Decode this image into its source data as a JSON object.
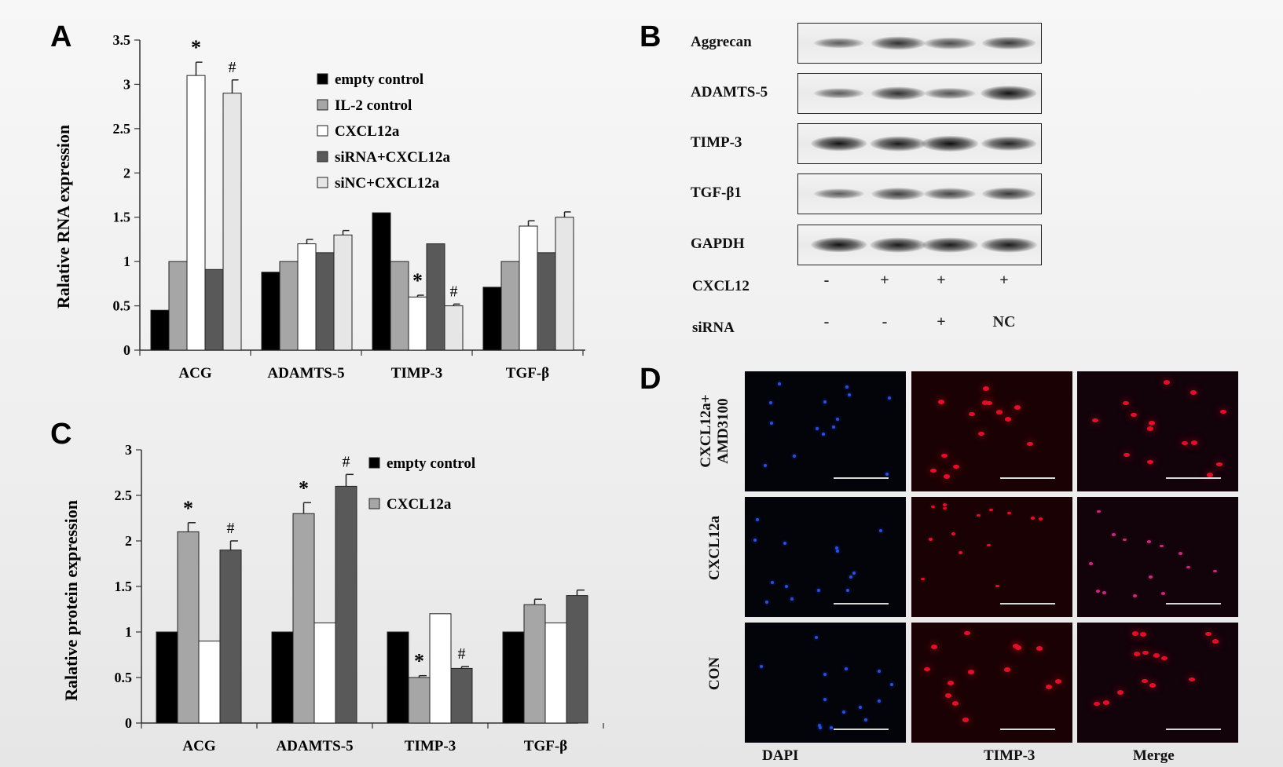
{
  "panels": {
    "A": "A",
    "B": "B",
    "C": "C",
    "D": "D"
  },
  "chart_data": [
    {
      "type": "bar",
      "panel": "A",
      "ylabel": "Ralative RNA expression",
      "categories": [
        "ACG",
        "ADAMTS-5",
        "TIMP-3",
        "TGF-β"
      ],
      "ylim": [
        0,
        3.5
      ],
      "yticks": [
        "0",
        "0.5",
        "1",
        "1.5",
        "2",
        "2.5",
        "3",
        "3.5"
      ],
      "legend_position": "top-right",
      "series": [
        {
          "name": "empty control",
          "color": "#000000",
          "values": [
            0.45,
            0.88,
            1.55,
            0.71
          ],
          "errors": [
            0,
            0,
            0,
            0
          ]
        },
        {
          "name": "IL-2 control",
          "color": "#a6a6a6",
          "values": [
            1.0,
            1.0,
            1.0,
            1.0
          ],
          "errors": [
            0,
            0,
            0,
            0
          ]
        },
        {
          "name": "CXCL12a",
          "color": "#ffffff",
          "values": [
            3.1,
            1.2,
            0.6,
            1.4
          ],
          "errors": [
            0.15,
            0.05,
            0.02,
            0.06
          ]
        },
        {
          "name": "siRNA+CXCL12a",
          "color": "#595959",
          "values": [
            0.91,
            1.1,
            1.2,
            1.1
          ],
          "errors": [
            0,
            0,
            0,
            0
          ]
        },
        {
          "name": "siNC+CXCL12a",
          "color": "#e6e6e6",
          "values": [
            2.9,
            1.3,
            0.5,
            1.5
          ],
          "errors": [
            0.15,
            0.05,
            0.02,
            0.06
          ]
        }
      ],
      "annotations": [
        {
          "text": "*",
          "category": 0,
          "series": 2
        },
        {
          "text": "#",
          "category": 0,
          "series": 4
        },
        {
          "text": "*",
          "category": 2,
          "series": 2
        },
        {
          "text": "#",
          "category": 2,
          "series": 4
        }
      ]
    },
    {
      "type": "bar",
      "panel": "C",
      "ylabel": "Ralative  protein expression",
      "categories": [
        "ACG",
        "ADAMTS-5",
        "TIMP-3",
        "TGF-β"
      ],
      "ylim": [
        0,
        3
      ],
      "yticks": [
        "0",
        "0.5",
        "1",
        "1.5",
        "2",
        "2.5",
        "3"
      ],
      "legend_position": "top-right",
      "series": [
        {
          "name": "empty control",
          "color": "#000000",
          "values": [
            1.0,
            1.0,
            1.0,
            1.0
          ],
          "errors": [
            0,
            0,
            0,
            0
          ]
        },
        {
          "name": "CXCL12a",
          "color": "#a6a6a6",
          "values": [
            2.1,
            2.3,
            0.5,
            1.3
          ],
          "errors": [
            0.1,
            0.12,
            0.02,
            0.06
          ]
        },
        {
          "name": "",
          "color": "#ffffff",
          "values": [
            0.9,
            1.1,
            1.2,
            1.1
          ],
          "errors": [
            0,
            0,
            0,
            0
          ]
        },
        {
          "name": "",
          "color": "#595959",
          "values": [
            1.9,
            2.6,
            0.6,
            1.4
          ],
          "errors": [
            0.1,
            0.13,
            0.02,
            0.06
          ]
        }
      ],
      "annotations": [
        {
          "text": "*",
          "category": 0,
          "series": 1
        },
        {
          "text": "#",
          "category": 0,
          "series": 3
        },
        {
          "text": "*",
          "category": 1,
          "series": 1
        },
        {
          "text": "#",
          "category": 1,
          "series": 3
        },
        {
          "text": "*",
          "category": 2,
          "series": 1
        },
        {
          "text": "#",
          "category": 2,
          "series": 3
        }
      ]
    }
  ],
  "western_blot": {
    "proteins": [
      {
        "name": "Aggrecan",
        "intensity": [
          0.45,
          0.75,
          0.55,
          0.7
        ]
      },
      {
        "name": "ADAMTS-5",
        "intensity": [
          0.45,
          0.75,
          0.5,
          0.95
        ]
      },
      {
        "name": "TIMP-3",
        "intensity": [
          0.95,
          0.9,
          1.0,
          0.85
        ]
      },
      {
        "name": "TGF-β1",
        "intensity": [
          0.45,
          0.65,
          0.6,
          0.7
        ]
      },
      {
        "name": "GAPDH",
        "intensity": [
          0.95,
          0.9,
          0.9,
          0.9
        ]
      }
    ],
    "conditions": [
      {
        "name": "CXCL12",
        "values": [
          "-",
          "+",
          "+",
          "+"
        ]
      },
      {
        "name": "siRNA",
        "values": [
          "-",
          "-",
          "+",
          "NC"
        ]
      }
    ]
  },
  "fluorescence": {
    "rows": [
      "CXCL12a+ AMD3100",
      "CXCL12a",
      "CON"
    ],
    "columns": [
      "DAPI",
      "TIMP-3",
      "Merge"
    ]
  }
}
